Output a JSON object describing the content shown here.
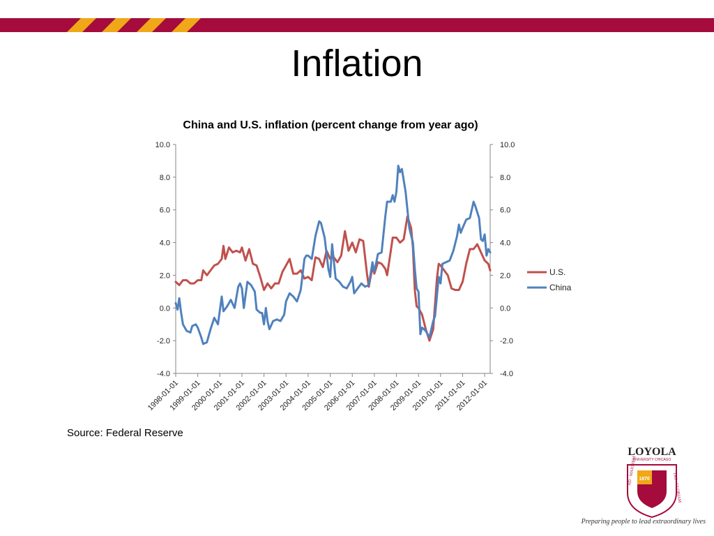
{
  "slide": {
    "title": "Inflation",
    "source": "Source: Federal Reserve",
    "logo_text": "LOYOLA",
    "logo_subtext": "UNIVERSITY CHICAGO",
    "logo_year": "1870",
    "logo_motto": "AD MAIOREM DEI GLORIAM",
    "tagline": "Preparing people to lead extraordinary lives"
  },
  "colors": {
    "band": "#a50b3c",
    "stripe": "#f0a818",
    "us": "#c0504d",
    "china": "#4f81bd"
  },
  "chart_data": {
    "type": "line",
    "title": "China and U.S. inflation (percent change from year ago)",
    "xlabel": "",
    "ylabel": "",
    "ylim": [
      -4,
      10
    ],
    "yticks": [
      "10.0",
      "8.0",
      "6.0",
      "4.0",
      "2.0",
      "0.0",
      "-2.0",
      "-4.0"
    ],
    "xticks": [
      "1998-01-01",
      "1999-01-01",
      "2000-01-01",
      "2001-01-01",
      "2002-01-01",
      "2003-01-01",
      "2004-01-01",
      "2005-01-01",
      "2006-01-01",
      "2007-01-01",
      "2008-01-01",
      "2009-01-01",
      "2010-01-01",
      "2011-01-01",
      "2012-01-01"
    ],
    "x_range": [
      "1998-01-01",
      "2012-04-01"
    ],
    "grid": false,
    "legend_position": "right",
    "series": [
      {
        "name": "U.S.",
        "color": "#c0504d",
        "points": [
          [
            "1998-01-01",
            1.6
          ],
          [
            "1998-03-01",
            1.4
          ],
          [
            "1998-05-01",
            1.7
          ],
          [
            "1998-07-01",
            1.7
          ],
          [
            "1998-09-01",
            1.5
          ],
          [
            "1998-11-01",
            1.5
          ],
          [
            "1999-01-01",
            1.7
          ],
          [
            "1999-03-01",
            1.7
          ],
          [
            "1999-04-01",
            2.3
          ],
          [
            "1999-06-01",
            2.0
          ],
          [
            "1999-08-01",
            2.3
          ],
          [
            "1999-10-01",
            2.6
          ],
          [
            "1999-12-01",
            2.7
          ],
          [
            "2000-02-01",
            3.0
          ],
          [
            "2000-03-01",
            3.8
          ],
          [
            "2000-04-01",
            3.0
          ],
          [
            "2000-06-01",
            3.7
          ],
          [
            "2000-08-01",
            3.4
          ],
          [
            "2000-10-01",
            3.5
          ],
          [
            "2000-12-01",
            3.4
          ],
          [
            "2001-01-01",
            3.7
          ],
          [
            "2001-03-01",
            2.9
          ],
          [
            "2001-05-01",
            3.6
          ],
          [
            "2001-07-01",
            2.7
          ],
          [
            "2001-09-01",
            2.6
          ],
          [
            "2001-11-01",
            1.9
          ],
          [
            "2002-01-01",
            1.1
          ],
          [
            "2002-03-01",
            1.5
          ],
          [
            "2002-05-01",
            1.2
          ],
          [
            "2002-07-01",
            1.5
          ],
          [
            "2002-09-01",
            1.5
          ],
          [
            "2002-11-01",
            2.2
          ],
          [
            "2003-01-01",
            2.6
          ],
          [
            "2003-03-01",
            3.0
          ],
          [
            "2003-05-01",
            2.1
          ],
          [
            "2003-07-01",
            2.1
          ],
          [
            "2003-09-01",
            2.3
          ],
          [
            "2003-11-01",
            1.8
          ],
          [
            "2004-01-01",
            1.9
          ],
          [
            "2004-03-01",
            1.7
          ],
          [
            "2004-05-01",
            3.1
          ],
          [
            "2004-07-01",
            3.0
          ],
          [
            "2004-09-01",
            2.5
          ],
          [
            "2004-11-01",
            3.5
          ],
          [
            "2005-01-01",
            3.0
          ],
          [
            "2005-03-01",
            3.1
          ],
          [
            "2005-05-01",
            2.8
          ],
          [
            "2005-07-01",
            3.2
          ],
          [
            "2005-09-01",
            4.7
          ],
          [
            "2005-11-01",
            3.5
          ],
          [
            "2006-01-01",
            4.0
          ],
          [
            "2006-03-01",
            3.4
          ],
          [
            "2006-05-01",
            4.2
          ],
          [
            "2006-07-01",
            4.1
          ],
          [
            "2006-09-01",
            2.1
          ],
          [
            "2006-10-01",
            1.3
          ],
          [
            "2006-12-01",
            2.5
          ],
          [
            "2007-01-01",
            2.1
          ],
          [
            "2007-03-01",
            2.8
          ],
          [
            "2007-05-01",
            2.7
          ],
          [
            "2007-07-01",
            2.4
          ],
          [
            "2007-08-01",
            2.0
          ],
          [
            "2007-10-01",
            3.5
          ],
          [
            "2007-11-01",
            4.3
          ],
          [
            "2008-01-01",
            4.3
          ],
          [
            "2008-03-01",
            4.0
          ],
          [
            "2008-05-01",
            4.2
          ],
          [
            "2008-07-01",
            5.6
          ],
          [
            "2008-09-01",
            4.9
          ],
          [
            "2008-10-01",
            3.7
          ],
          [
            "2008-11-01",
            1.1
          ],
          [
            "2008-12-01",
            0.1
          ],
          [
            "2009-01-01",
            0.0
          ],
          [
            "2009-03-01",
            -0.4
          ],
          [
            "2009-05-01",
            -1.3
          ],
          [
            "2009-07-01",
            -2.0
          ],
          [
            "2009-09-01",
            -1.3
          ],
          [
            "2009-11-01",
            1.8
          ],
          [
            "2009-12-01",
            2.7
          ],
          [
            "2010-01-01",
            2.6
          ],
          [
            "2010-03-01",
            2.3
          ],
          [
            "2010-05-01",
            2.0
          ],
          [
            "2010-07-01",
            1.2
          ],
          [
            "2010-09-01",
            1.1
          ],
          [
            "2010-11-01",
            1.1
          ],
          [
            "2011-01-01",
            1.6
          ],
          [
            "2011-03-01",
            2.7
          ],
          [
            "2011-05-01",
            3.6
          ],
          [
            "2011-07-01",
            3.6
          ],
          [
            "2011-09-01",
            3.9
          ],
          [
            "2011-11-01",
            3.4
          ],
          [
            "2012-01-01",
            2.9
          ],
          [
            "2012-03-01",
            2.7
          ],
          [
            "2012-04-01",
            2.3
          ]
        ]
      },
      {
        "name": "China",
        "color": "#4f81bd",
        "points": [
          [
            "1998-01-01",
            0.3
          ],
          [
            "1998-02-01",
            -0.1
          ],
          [
            "1998-03-01",
            0.6
          ],
          [
            "1998-04-01",
            -0.3
          ],
          [
            "1998-05-01",
            -1.0
          ],
          [
            "1998-07-01",
            -1.4
          ],
          [
            "1998-09-01",
            -1.5
          ],
          [
            "1998-10-01",
            -1.1
          ],
          [
            "1998-12-01",
            -1.0
          ],
          [
            "1999-01-01",
            -1.2
          ],
          [
            "1999-03-01",
            -1.8
          ],
          [
            "1999-04-01",
            -2.2
          ],
          [
            "1999-06-01",
            -2.1
          ],
          [
            "1999-08-01",
            -1.3
          ],
          [
            "1999-10-01",
            -0.6
          ],
          [
            "1999-12-01",
            -1.0
          ],
          [
            "2000-02-01",
            0.7
          ],
          [
            "2000-03-01",
            -0.2
          ],
          [
            "2000-05-01",
            0.1
          ],
          [
            "2000-07-01",
            0.5
          ],
          [
            "2000-09-01",
            0.0
          ],
          [
            "2000-11-01",
            1.3
          ],
          [
            "2000-12-01",
            1.5
          ],
          [
            "2001-01-01",
            1.2
          ],
          [
            "2001-02-01",
            0.0
          ],
          [
            "2001-04-01",
            1.6
          ],
          [
            "2001-06-01",
            1.4
          ],
          [
            "2001-08-01",
            1.0
          ],
          [
            "2001-09-01",
            -0.1
          ],
          [
            "2001-11-01",
            -0.3
          ],
          [
            "2001-12-01",
            -0.3
          ],
          [
            "2002-01-01",
            -1.0
          ],
          [
            "2002-02-01",
            0.0
          ],
          [
            "2002-03-01",
            -0.8
          ],
          [
            "2002-04-01",
            -1.3
          ],
          [
            "2002-06-01",
            -0.8
          ],
          [
            "2002-08-01",
            -0.7
          ],
          [
            "2002-10-01",
            -0.8
          ],
          [
            "2002-12-01",
            -0.4
          ],
          [
            "2003-01-01",
            0.4
          ],
          [
            "2003-03-01",
            0.9
          ],
          [
            "2003-05-01",
            0.7
          ],
          [
            "2003-07-01",
            0.4
          ],
          [
            "2003-09-01",
            1.1
          ],
          [
            "2003-11-01",
            3.0
          ],
          [
            "2003-12-01",
            3.2
          ],
          [
            "2004-01-01",
            3.2
          ],
          [
            "2004-03-01",
            3.0
          ],
          [
            "2004-05-01",
            4.4
          ],
          [
            "2004-07-01",
            5.3
          ],
          [
            "2004-08-01",
            5.2
          ],
          [
            "2004-10-01",
            4.3
          ],
          [
            "2004-12-01",
            2.4
          ],
          [
            "2005-01-01",
            1.9
          ],
          [
            "2005-02-01",
            3.9
          ],
          [
            "2005-04-01",
            1.8
          ],
          [
            "2005-06-01",
            1.6
          ],
          [
            "2005-08-01",
            1.3
          ],
          [
            "2005-10-01",
            1.2
          ],
          [
            "2005-12-01",
            1.6
          ],
          [
            "2006-01-01",
            1.9
          ],
          [
            "2006-02-01",
            0.9
          ],
          [
            "2006-04-01",
            1.2
          ],
          [
            "2006-06-01",
            1.5
          ],
          [
            "2006-08-01",
            1.3
          ],
          [
            "2006-10-01",
            1.4
          ],
          [
            "2006-12-01",
            2.8
          ],
          [
            "2007-01-01",
            2.2
          ],
          [
            "2007-03-01",
            3.3
          ],
          [
            "2007-05-01",
            3.4
          ],
          [
            "2007-07-01",
            5.6
          ],
          [
            "2007-08-01",
            6.5
          ],
          [
            "2007-10-01",
            6.5
          ],
          [
            "2007-11-01",
            6.9
          ],
          [
            "2007-12-01",
            6.5
          ],
          [
            "2008-01-01",
            7.1
          ],
          [
            "2008-02-01",
            8.7
          ],
          [
            "2008-03-01",
            8.3
          ],
          [
            "2008-04-01",
            8.5
          ],
          [
            "2008-06-01",
            7.1
          ],
          [
            "2008-08-01",
            4.9
          ],
          [
            "2008-10-01",
            4.0
          ],
          [
            "2008-11-01",
            2.4
          ],
          [
            "2008-12-01",
            1.2
          ],
          [
            "2009-01-01",
            1.0
          ],
          [
            "2009-02-01",
            -1.6
          ],
          [
            "2009-03-01",
            -1.2
          ],
          [
            "2009-05-01",
            -1.4
          ],
          [
            "2009-07-01",
            -1.8
          ],
          [
            "2009-09-01",
            -0.8
          ],
          [
            "2009-10-01",
            -0.5
          ],
          [
            "2009-12-01",
            1.9
          ],
          [
            "2010-01-01",
            1.5
          ],
          [
            "2010-02-01",
            2.7
          ],
          [
            "2010-04-01",
            2.8
          ],
          [
            "2010-06-01",
            2.9
          ],
          [
            "2010-08-01",
            3.5
          ],
          [
            "2010-10-01",
            4.4
          ],
          [
            "2010-11-01",
            5.1
          ],
          [
            "2010-12-01",
            4.6
          ],
          [
            "2011-01-01",
            4.9
          ],
          [
            "2011-03-01",
            5.4
          ],
          [
            "2011-05-01",
            5.5
          ],
          [
            "2011-07-01",
            6.5
          ],
          [
            "2011-08-01",
            6.2
          ],
          [
            "2011-10-01",
            5.5
          ],
          [
            "2011-11-01",
            4.2
          ],
          [
            "2011-12-01",
            4.1
          ],
          [
            "2012-01-01",
            4.5
          ],
          [
            "2012-02-01",
            3.2
          ],
          [
            "2012-03-01",
            3.6
          ],
          [
            "2012-04-01",
            3.4
          ]
        ]
      }
    ]
  }
}
